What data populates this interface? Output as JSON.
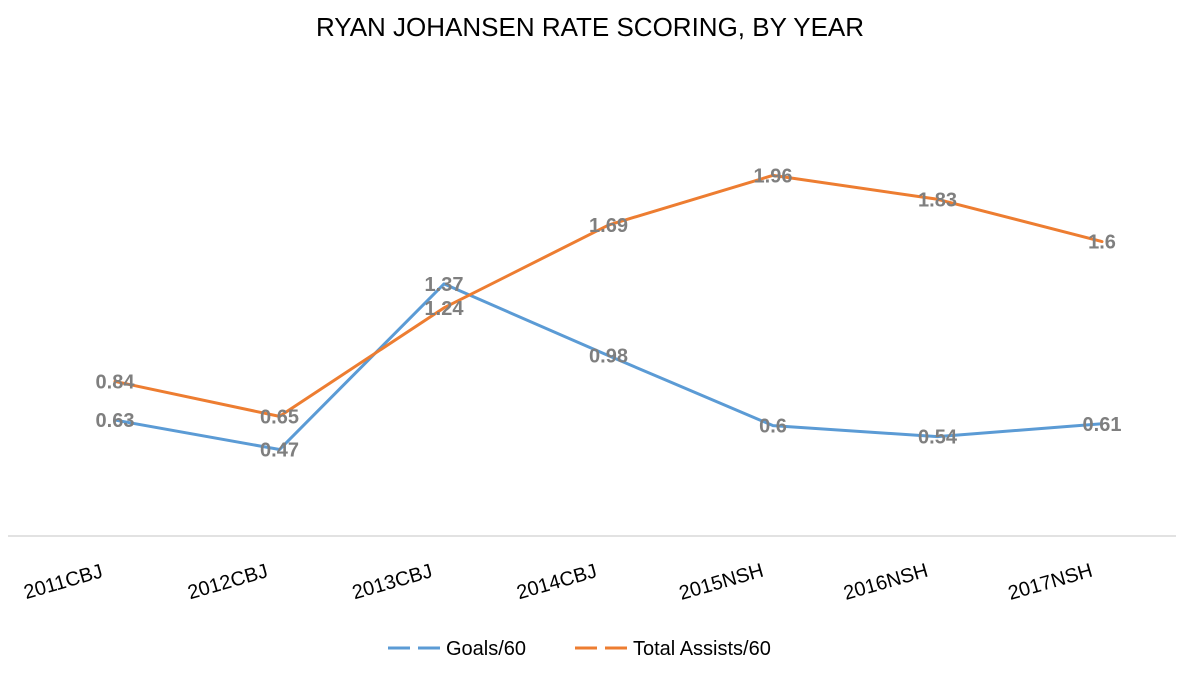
{
  "chart_data": {
    "type": "line",
    "title": "RYAN JOHANSEN RATE SCORING, BY YEAR",
    "categories": [
      "2011CBJ",
      "2012CBJ",
      "2013CBJ",
      "2014CBJ",
      "2015NSH",
      "2016NSH",
      "2017NSH"
    ],
    "series": [
      {
        "name": "Goals/60",
        "color": "#5b9bd5",
        "values": [
          0.63,
          0.47,
          1.37,
          0.98,
          0.6,
          0.54,
          0.61
        ]
      },
      {
        "name": "Total Assists/60",
        "color": "#ed7d31",
        "values": [
          0.84,
          0.65,
          1.24,
          1.69,
          1.96,
          1.83,
          1.6
        ]
      }
    ],
    "ylim": [
      0,
      2.5
    ],
    "grid": false,
    "legend_position": "bottom",
    "data_labels": true,
    "data_label_color": "#7f7f7f",
    "axis_color": "#d9d9d9"
  }
}
